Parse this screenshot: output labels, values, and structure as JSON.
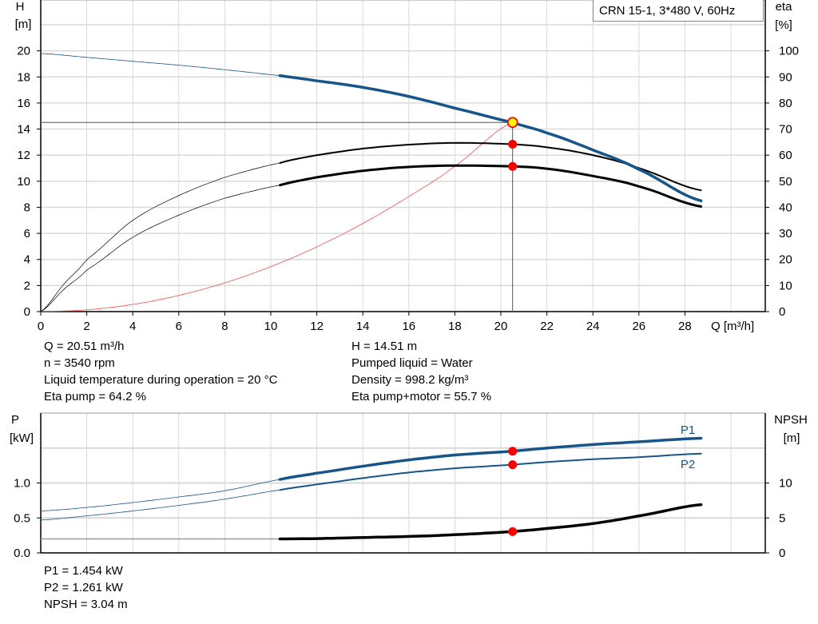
{
  "title": "CRN 15-1, 3*480 V, 60Hz",
  "colors": {
    "head": "#17548a",
    "efficiency": "#000000",
    "system": "#ff4d4d",
    "power": "#17548a",
    "npsh": "#000000",
    "marker": "#ff0000",
    "operating_point": "#ffff00",
    "grid": "#d9d9d9"
  },
  "operating_point_info": {
    "left": [
      "Q = 20.51 m³/h",
      "n = 3540 rpm",
      "Liquid temperature during operation = 20 °C",
      "Eta pump = 64.2 %"
    ],
    "right": [
      "H = 14.51 m",
      "Pumped liquid = Water",
      "Density = 998.2 kg/m³",
      "Eta pump+motor = 55.7 %"
    ]
  },
  "power_info": [
    "P1 = 1.454 kW",
    "P2 = 1.261 kW",
    "NPSH = 3.04 m"
  ],
  "chart_data": [
    {
      "type": "line",
      "xlabel": "Q [m³/h]",
      "ylabel_left": [
        "H",
        "[m]"
      ],
      "ylabel_right": [
        "eta",
        "[%]"
      ],
      "xlim": [
        0,
        31.5
      ],
      "ylim_left": [
        0,
        23.9
      ],
      "ylim_right": [
        0,
        119.5
      ],
      "xticks": [
        0,
        2,
        4,
        6,
        8,
        10,
        12,
        14,
        16,
        18,
        20,
        22,
        24,
        26,
        28
      ],
      "yticks_left": [
        0,
        2,
        4,
        6,
        8,
        10,
        12,
        14,
        16,
        18,
        20
      ],
      "yticks_right": [
        0,
        10,
        20,
        30,
        40,
        50,
        60,
        70,
        80,
        90,
        100
      ],
      "grid": true,
      "operating_range": [
        10.4,
        28.7
      ],
      "operating_point": {
        "Q": 20.51,
        "H": 14.51,
        "eta_pump": 64.2,
        "eta_pump_motor": 55.7
      },
      "series": [
        {
          "key": "head",
          "axis": "left",
          "x": [
            0,
            2,
            4,
            6,
            8,
            10.4,
            12,
            14,
            16,
            18,
            20.51,
            22,
            24,
            26,
            28.7
          ],
          "y": [
            19.8,
            19.5,
            19.2,
            18.9,
            18.55,
            18.1,
            17.7,
            17.2,
            16.5,
            15.6,
            14.51,
            13.7,
            12.4,
            10.9,
            8.5
          ]
        },
        {
          "key": "eta_pump",
          "axis": "right",
          "x": [
            0,
            1,
            2,
            4,
            6,
            8,
            10.4,
            12,
            14,
            16,
            18,
            20.51,
            22,
            24,
            26,
            28.7
          ],
          "y": [
            0,
            10.5,
            20,
            35,
            44.5,
            51.5,
            57,
            60,
            62.5,
            64,
            64.7,
            64.2,
            63,
            60,
            55,
            46.5
          ]
        },
        {
          "key": "eta_pump_motor",
          "axis": "right",
          "x": [
            0,
            1,
            2,
            4,
            6,
            8,
            10.4,
            12,
            14,
            16,
            18,
            20.51,
            22,
            24,
            26,
            28.7
          ],
          "y": [
            0,
            8.5,
            16,
            28.5,
            37,
            43.5,
            48.5,
            51.5,
            54,
            55.5,
            56,
            55.7,
            54.8,
            52,
            48,
            40.3
          ]
        },
        {
          "key": "system",
          "axis": "left",
          "x": [
            0,
            2,
            4,
            6,
            8,
            10,
            12,
            14,
            16,
            18,
            20.51
          ],
          "y": [
            0,
            0.14,
            0.55,
            1.24,
            2.21,
            3.45,
            4.97,
            6.76,
            8.83,
            11.17,
            14.51
          ]
        }
      ]
    },
    {
      "type": "line",
      "ylabel_left": [
        "P",
        "[kW]"
      ],
      "ylabel_right": [
        "NPSH",
        "[m]"
      ],
      "xlim": [
        0,
        31.5
      ],
      "ylim_left": [
        0,
        2.0
      ],
      "ylim_right": [
        0,
        20
      ],
      "yticks_left": [
        0.0,
        0.5,
        1.0
      ],
      "yticks_right": [
        0,
        5,
        10
      ],
      "grid": true,
      "operating_range": [
        10.4,
        28.7
      ],
      "operating_point": {
        "P1": 1.454,
        "P2": 1.261,
        "NPSH": 3.04
      },
      "series": [
        {
          "key": "P1",
          "name": "P1",
          "axis": "left",
          "x": [
            0,
            2,
            4,
            6,
            8,
            10.4,
            12,
            14,
            16,
            18,
            20.51,
            22,
            24,
            26,
            28.7
          ],
          "y": [
            0.6,
            0.65,
            0.72,
            0.8,
            0.89,
            1.05,
            1.14,
            1.24,
            1.33,
            1.4,
            1.454,
            1.5,
            1.55,
            1.59,
            1.64
          ]
        },
        {
          "key": "P2",
          "name": "P2",
          "axis": "left",
          "x": [
            0,
            2,
            4,
            6,
            8,
            10.4,
            12,
            14,
            16,
            18,
            20.51,
            22,
            24,
            26,
            28.7
          ],
          "y": [
            0.47,
            0.53,
            0.6,
            0.68,
            0.77,
            0.9,
            0.98,
            1.07,
            1.15,
            1.21,
            1.261,
            1.3,
            1.34,
            1.37,
            1.42
          ]
        },
        {
          "key": "NPSH",
          "axis": "right",
          "x": [
            0,
            10.4,
            12,
            14,
            16,
            18,
            20.51,
            22,
            24,
            26,
            28.7
          ],
          "y": [
            2.0,
            2.0,
            2.05,
            2.2,
            2.35,
            2.6,
            3.04,
            3.5,
            4.2,
            5.3,
            6.9
          ]
        }
      ]
    }
  ]
}
